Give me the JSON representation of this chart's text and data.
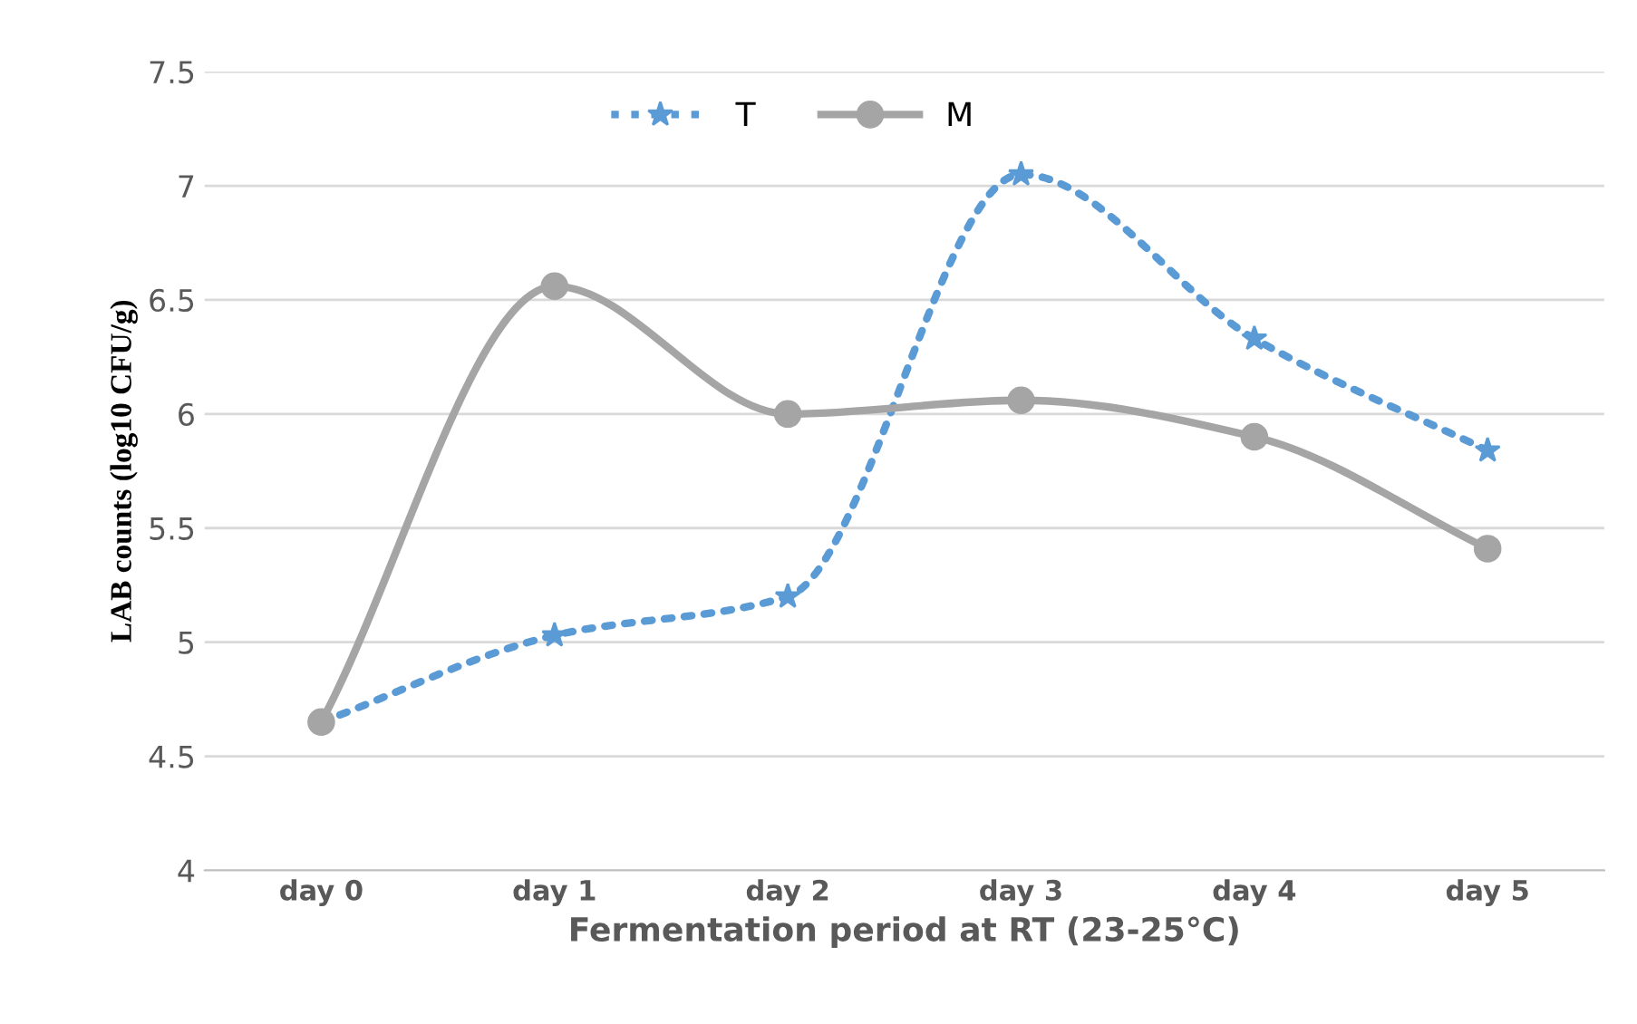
{
  "chart_data": {
    "type": "line",
    "xlabel": "Fermentation period at RT (23-25°C)",
    "ylabel": "LAB counts (log10 CFU/g)",
    "categories": [
      "day 0",
      "day 1",
      "day 2",
      "day 3",
      "day 4",
      "day 5"
    ],
    "series": [
      {
        "name": "T",
        "color": "#5b9bd5",
        "marker": "star",
        "line_style": "dotted",
        "values": [
          4.65,
          5.03,
          5.2,
          7.05,
          6.33,
          5.84
        ]
      },
      {
        "name": "M",
        "color": "#a5a5a5",
        "marker": "circle",
        "line_style": "solid",
        "values": [
          4.65,
          6.56,
          6.0,
          6.06,
          5.9,
          5.41
        ]
      }
    ],
    "ylim": [
      4,
      7.5
    ],
    "yticks": [
      4,
      4.5,
      5,
      5.5,
      6,
      6.5,
      7,
      7.5
    ],
    "grid": "y",
    "legend": "top"
  }
}
